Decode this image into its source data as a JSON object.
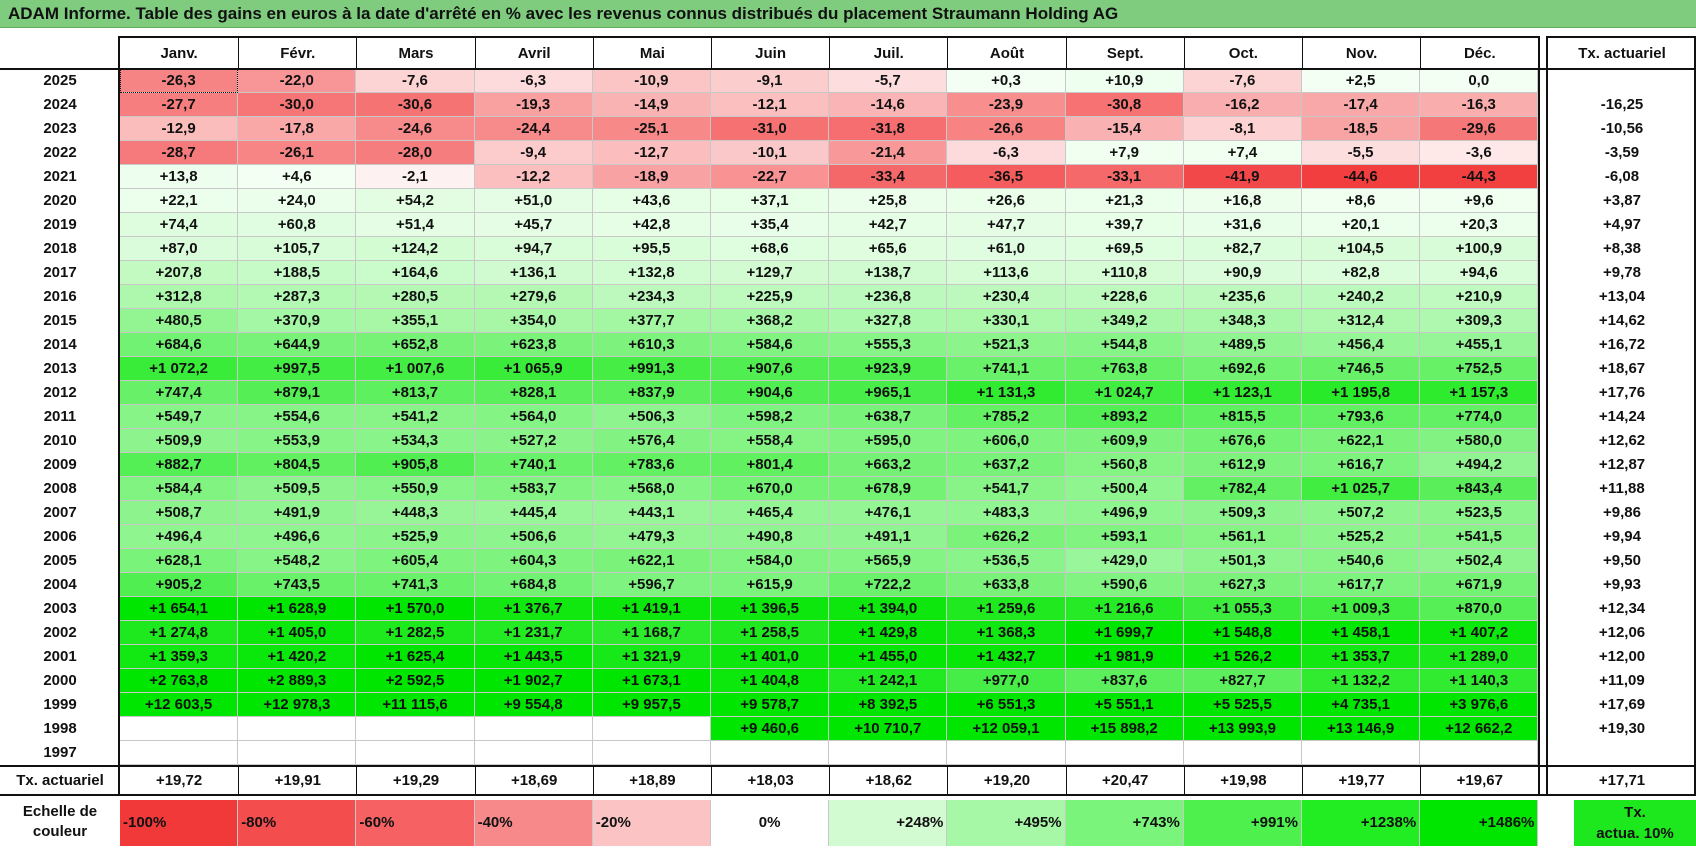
{
  "title": "ADAM Informe. Table des gains en euros à la date d'arrêté en % avec les revenus connus distribués du placement Straumann Holding AG",
  "months": [
    "Janv.",
    "Févr.",
    "Mars",
    "Avril",
    "Mai",
    "Juin",
    "Juil.",
    "Août",
    "Sept.",
    "Oct.",
    "Nov.",
    "Déc."
  ],
  "actuarial_header": "Tx. actuariel",
  "rows": [
    {
      "year": "2025",
      "values": [
        "-26,3",
        "-22,0",
        "-7,6",
        "-6,3",
        "-10,9",
        "-9,1",
        "-5,7",
        "+0,3",
        "+10,9",
        "-7,6",
        "+2,5",
        "0,0"
      ],
      "rate": ""
    },
    {
      "year": "2024",
      "values": [
        "-27,7",
        "-30,0",
        "-30,6",
        "-19,3",
        "-14,9",
        "-12,1",
        "-14,6",
        "-23,9",
        "-30,8",
        "-16,2",
        "-17,4",
        "-16,3"
      ],
      "rate": "-16,25"
    },
    {
      "year": "2023",
      "values": [
        "-12,9",
        "-17,8",
        "-24,6",
        "-24,4",
        "-25,1",
        "-31,0",
        "-31,8",
        "-26,6",
        "-15,4",
        "-8,1",
        "-18,5",
        "-29,6"
      ],
      "rate": "-10,56"
    },
    {
      "year": "2022",
      "values": [
        "-28,7",
        "-26,1",
        "-28,0",
        "-9,4",
        "-12,7",
        "-10,1",
        "-21,4",
        "-6,3",
        "+7,9",
        "+7,4",
        "-5,5",
        "-3,6"
      ],
      "rate": "-3,59"
    },
    {
      "year": "2021",
      "values": [
        "+13,8",
        "+4,6",
        "-2,1",
        "-12,2",
        "-18,9",
        "-22,7",
        "-33,4",
        "-36,5",
        "-33,1",
        "-41,9",
        "-44,6",
        "-44,3"
      ],
      "rate": "-6,08"
    },
    {
      "year": "2020",
      "values": [
        "+22,1",
        "+24,0",
        "+54,2",
        "+51,0",
        "+43,6",
        "+37,1",
        "+25,8",
        "+26,6",
        "+21,3",
        "+16,8",
        "+8,6",
        "+9,6"
      ],
      "rate": "+3,87"
    },
    {
      "year": "2019",
      "values": [
        "+74,4",
        "+60,8",
        "+51,4",
        "+45,7",
        "+42,8",
        "+35,4",
        "+42,7",
        "+47,7",
        "+39,7",
        "+31,6",
        "+20,1",
        "+20,3"
      ],
      "rate": "+4,97"
    },
    {
      "year": "2018",
      "values": [
        "+87,0",
        "+105,7",
        "+124,2",
        "+94,7",
        "+95,5",
        "+68,6",
        "+65,6",
        "+61,0",
        "+69,5",
        "+82,7",
        "+104,5",
        "+100,9"
      ],
      "rate": "+8,38"
    },
    {
      "year": "2017",
      "values": [
        "+207,8",
        "+188,5",
        "+164,6",
        "+136,1",
        "+132,8",
        "+129,7",
        "+138,7",
        "+113,6",
        "+110,8",
        "+90,9",
        "+82,8",
        "+94,6"
      ],
      "rate": "+9,78"
    },
    {
      "year": "2016",
      "values": [
        "+312,8",
        "+287,3",
        "+280,5",
        "+279,6",
        "+234,3",
        "+225,9",
        "+236,8",
        "+230,4",
        "+228,6",
        "+235,6",
        "+240,2",
        "+210,9"
      ],
      "rate": "+13,04"
    },
    {
      "year": "2015",
      "values": [
        "+480,5",
        "+370,9",
        "+355,1",
        "+354,0",
        "+377,7",
        "+368,2",
        "+327,8",
        "+330,1",
        "+349,2",
        "+348,3",
        "+312,4",
        "+309,3"
      ],
      "rate": "+14,62"
    },
    {
      "year": "2014",
      "values": [
        "+684,6",
        "+644,9",
        "+652,8",
        "+623,8",
        "+610,3",
        "+584,6",
        "+555,3",
        "+521,3",
        "+544,8",
        "+489,5",
        "+456,4",
        "+455,1"
      ],
      "rate": "+16,72"
    },
    {
      "year": "2013",
      "values": [
        "+1 072,2",
        "+997,5",
        "+1 007,6",
        "+1 065,9",
        "+991,3",
        "+907,6",
        "+923,9",
        "+741,1",
        "+763,8",
        "+692,6",
        "+746,5",
        "+752,5"
      ],
      "rate": "+18,67"
    },
    {
      "year": "2012",
      "values": [
        "+747,4",
        "+879,1",
        "+813,7",
        "+828,1",
        "+837,9",
        "+904,6",
        "+965,1",
        "+1 131,3",
        "+1 024,7",
        "+1 123,1",
        "+1 195,8",
        "+1 157,3"
      ],
      "rate": "+17,76"
    },
    {
      "year": "2011",
      "values": [
        "+549,7",
        "+554,6",
        "+541,2",
        "+564,0",
        "+506,3",
        "+598,2",
        "+638,7",
        "+785,2",
        "+893,2",
        "+815,5",
        "+793,6",
        "+774,0"
      ],
      "rate": "+14,24"
    },
    {
      "year": "2010",
      "values": [
        "+509,9",
        "+553,9",
        "+534,3",
        "+527,2",
        "+576,4",
        "+558,4",
        "+595,0",
        "+606,0",
        "+609,9",
        "+676,6",
        "+622,1",
        "+580,0"
      ],
      "rate": "+12,62"
    },
    {
      "year": "2009",
      "values": [
        "+882,7",
        "+804,5",
        "+905,8",
        "+740,1",
        "+783,6",
        "+801,4",
        "+663,2",
        "+637,2",
        "+560,8",
        "+612,9",
        "+616,7",
        "+494,2"
      ],
      "rate": "+12,87"
    },
    {
      "year": "2008",
      "values": [
        "+584,4",
        "+509,5",
        "+550,9",
        "+583,7",
        "+568,0",
        "+670,0",
        "+678,9",
        "+541,7",
        "+500,4",
        "+782,4",
        "+1 025,7",
        "+843,4"
      ],
      "rate": "+11,88"
    },
    {
      "year": "2007",
      "values": [
        "+508,7",
        "+491,9",
        "+448,3",
        "+445,4",
        "+443,1",
        "+465,4",
        "+476,1",
        "+483,3",
        "+496,9",
        "+509,3",
        "+507,2",
        "+523,5"
      ],
      "rate": "+9,86"
    },
    {
      "year": "2006",
      "values": [
        "+496,4",
        "+496,6",
        "+525,9",
        "+506,6",
        "+479,3",
        "+490,8",
        "+491,1",
        "+626,2",
        "+593,1",
        "+561,1",
        "+525,2",
        "+541,5"
      ],
      "rate": "+9,94"
    },
    {
      "year": "2005",
      "values": [
        "+628,1",
        "+548,2",
        "+605,4",
        "+604,3",
        "+622,1",
        "+584,0",
        "+565,9",
        "+536,5",
        "+429,0",
        "+501,3",
        "+540,6",
        "+502,4"
      ],
      "rate": "+9,50"
    },
    {
      "year": "2004",
      "values": [
        "+905,2",
        "+743,5",
        "+741,3",
        "+684,8",
        "+596,7",
        "+615,9",
        "+722,2",
        "+633,8",
        "+590,6",
        "+627,3",
        "+617,7",
        "+671,9"
      ],
      "rate": "+9,93"
    },
    {
      "year": "2003",
      "values": [
        "+1 654,1",
        "+1 628,9",
        "+1 570,0",
        "+1 376,7",
        "+1 419,1",
        "+1 396,5",
        "+1 394,0",
        "+1 259,6",
        "+1 216,6",
        "+1 055,3",
        "+1 009,3",
        "+870,0"
      ],
      "rate": "+12,34"
    },
    {
      "year": "2002",
      "values": [
        "+1 274,8",
        "+1 405,0",
        "+1 282,5",
        "+1 231,7",
        "+1 168,7",
        "+1 258,5",
        "+1 429,8",
        "+1 368,3",
        "+1 699,7",
        "+1 548,8",
        "+1 458,1",
        "+1 407,2"
      ],
      "rate": "+12,06"
    },
    {
      "year": "2001",
      "values": [
        "+1 359,3",
        "+1 420,2",
        "+1 625,4",
        "+1 443,5",
        "+1 321,9",
        "+1 401,0",
        "+1 455,0",
        "+1 432,7",
        "+1 981,9",
        "+1 526,2",
        "+1 353,7",
        "+1 289,0"
      ],
      "rate": "+12,00"
    },
    {
      "year": "2000",
      "values": [
        "+2 763,8",
        "+2 889,3",
        "+2 592,5",
        "+1 902,7",
        "+1 673,1",
        "+1 404,8",
        "+1 242,1",
        "+977,0",
        "+837,6",
        "+827,7",
        "+1 132,2",
        "+1 140,3"
      ],
      "rate": "+11,09"
    },
    {
      "year": "1999",
      "values": [
        "+12 603,5",
        "+12 978,3",
        "+11 115,6",
        "+9 554,8",
        "+9 957,5",
        "+9 578,7",
        "+8 392,5",
        "+6 551,3",
        "+5 551,1",
        "+5 525,5",
        "+4 735,1",
        "+3 976,6"
      ],
      "rate": "+17,69"
    },
    {
      "year": "1998",
      "values": [
        "",
        "",
        "",
        "",
        "",
        "+9 460,6",
        "+10 710,7",
        "+12 059,1",
        "+15 898,2",
        "+13 993,9",
        "+13 146,9",
        "+12 662,2"
      ],
      "rate": "+19,30"
    },
    {
      "year": "1997",
      "values": [
        "",
        "",
        "",
        "",
        "",
        "",
        "",
        "",
        "",
        "",
        "",
        ""
      ],
      "rate": ""
    }
  ],
  "summary": {
    "label": "Tx. actuariel",
    "values": [
      "+19,72",
      "+19,91",
      "+19,29",
      "+18,69",
      "+18,89",
      "+18,03",
      "+18,62",
      "+19,20",
      "+20,47",
      "+19,98",
      "+19,77",
      "+19,67"
    ],
    "total": "+17,71"
  },
  "legend": {
    "label_line1": "Echelle de",
    "label_line2": "couleur",
    "items": [
      {
        "text": "-100%",
        "color": "#f2393a",
        "align": "left"
      },
      {
        "text": "-80%",
        "color": "#f34d4e",
        "align": "left"
      },
      {
        "text": "-60%",
        "color": "#f66263",
        "align": "left"
      },
      {
        "text": "-40%",
        "color": "#f8898a",
        "align": "left"
      },
      {
        "text": "-20%",
        "color": "#fbc3c3",
        "align": "left"
      },
      {
        "text": "0%",
        "color": "#ffffff",
        "align": "center"
      },
      {
        "text": "+248%",
        "color": "#d2fbd2",
        "align": "right"
      },
      {
        "text": "+495%",
        "color": "#a6f7a6",
        "align": "right"
      },
      {
        "text": "+743%",
        "color": "#7af47a",
        "align": "right"
      },
      {
        "text": "+991%",
        "color": "#4ef04e",
        "align": "right"
      },
      {
        "text": "+1238%",
        "color": "#22ec22",
        "align": "right"
      },
      {
        "text": "+1486%",
        "color": "#00e600",
        "align": "right"
      }
    ],
    "rate_line1": "Tx.",
    "rate_line2": "actua. 10%",
    "rate_color": "#1de81d"
  }
}
